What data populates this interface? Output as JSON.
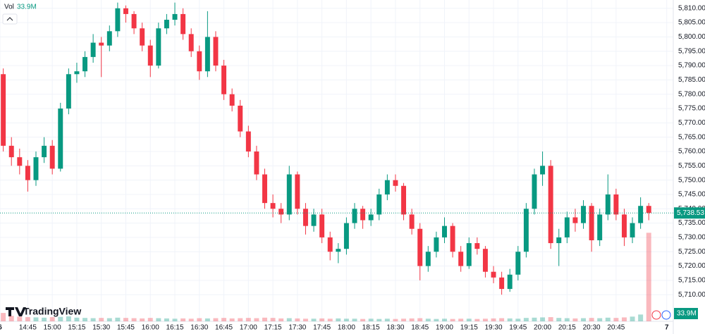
{
  "chart_data": {
    "type": "candlestick",
    "volume_header": "Vol",
    "brand": "TradingView",
    "x": [
      "14:30",
      "14:35",
      "14:40",
      "14:45",
      "14:50",
      "14:55",
      "15:00",
      "15:05",
      "15:10",
      "15:15",
      "15:20",
      "15:25",
      "15:30",
      "15:35",
      "15:40",
      "15:45",
      "15:50",
      "15:55",
      "16:00",
      "16:05",
      "16:10",
      "16:15",
      "16:20",
      "16:25",
      "16:30",
      "16:35",
      "16:40",
      "16:45",
      "16:50",
      "16:55",
      "17:00",
      "17:05",
      "17:10",
      "17:15",
      "17:20",
      "17:25",
      "17:30",
      "17:35",
      "17:40",
      "17:45",
      "17:50",
      "17:55",
      "18:00",
      "18:05",
      "18:10",
      "18:15",
      "18:20",
      "18:25",
      "18:30",
      "18:35",
      "18:40",
      "18:45",
      "18:50",
      "18:55",
      "19:00",
      "19:05",
      "19:10",
      "19:15",
      "19:20",
      "19:25",
      "19:30",
      "19:35",
      "19:40",
      "19:45",
      "19:50",
      "19:55",
      "20:00",
      "20:05",
      "20:10",
      "20:15",
      "20:20",
      "20:25",
      "20:30",
      "20:35",
      "20:40",
      "20:45",
      "20:50",
      "20:55",
      "21:00",
      "21:05"
    ],
    "open": [
      5787,
      5762,
      5758,
      5755,
      5750,
      5758,
      5762,
      5754,
      5775,
      5787,
      5788,
      5793,
      5798,
      5797,
      5802,
      5810,
      5808,
      5803,
      5797,
      5790,
      5803,
      5806,
      5808,
      5801,
      5795,
      5788,
      5800,
      5790,
      5780,
      5776,
      5767,
      5760,
      5752,
      5742,
      5740,
      5738,
      5752,
      5740,
      5734,
      5738,
      5730,
      5725,
      5726,
      5735,
      5740,
      5736,
      5738,
      5745,
      5750,
      5748,
      5738,
      5733,
      5720,
      5725,
      5730,
      5734,
      5725,
      5720,
      5728,
      5726,
      5718,
      5716,
      5712,
      5717,
      5725,
      5740,
      5752,
      5755,
      5728,
      5730,
      5737,
      5735,
      5741,
      5729,
      5738,
      5745,
      5738,
      5730,
      5735,
      5741
    ],
    "high": [
      5789,
      5765,
      5761,
      5757,
      5760,
      5765,
      5764,
      5777,
      5789,
      5791,
      5795,
      5801,
      5800,
      5804,
      5812,
      5811,
      5809,
      5805,
      5799,
      5805,
      5808,
      5812,
      5810,
      5803,
      5797,
      5809,
      5802,
      5792,
      5782,
      5778,
      5769,
      5762,
      5754,
      5745,
      5742,
      5755,
      5753,
      5742,
      5740,
      5740,
      5732,
      5728,
      5737,
      5742,
      5741,
      5740,
      5747,
      5752,
      5752,
      5749,
      5740,
      5735,
      5727,
      5732,
      5737,
      5735,
      5727,
      5730,
      5730,
      5727,
      5720,
      5718,
      5719,
      5727,
      5742,
      5754,
      5760,
      5757,
      5733,
      5739,
      5740,
      5743,
      5742,
      5740,
      5752,
      5747,
      5740,
      5737,
      5744,
      5742
    ],
    "low": [
      5760,
      5755,
      5752,
      5746,
      5748,
      5756,
      5752,
      5753,
      5773,
      5784,
      5786,
      5791,
      5786,
      5795,
      5800,
      5805,
      5801,
      5795,
      5786,
      5789,
      5801,
      5804,
      5799,
      5793,
      5785,
      5786,
      5788,
      5778,
      5774,
      5765,
      5758,
      5750,
      5740,
      5737,
      5735,
      5736,
      5738,
      5731,
      5732,
      5728,
      5722,
      5721,
      5724,
      5733,
      5733,
      5734,
      5736,
      5743,
      5746,
      5736,
      5731,
      5715,
      5718,
      5723,
      5728,
      5723,
      5718,
      5719,
      5724,
      5716,
      5714,
      5710,
      5711,
      5715,
      5723,
      5738,
      5748,
      5726,
      5720,
      5728,
      5732,
      5733,
      5725,
      5727,
      5736,
      5736,
      5727,
      5728,
      5733,
      5736
    ],
    "close": [
      5762,
      5758,
      5755,
      5750,
      5758,
      5762,
      5754,
      5775,
      5787,
      5788,
      5793,
      5798,
      5797,
      5802,
      5810,
      5808,
      5803,
      5797,
      5790,
      5803,
      5806,
      5808,
      5801,
      5795,
      5788,
      5800,
      5790,
      5780,
      5776,
      5767,
      5760,
      5752,
      5742,
      5740,
      5738,
      5752,
      5740,
      5734,
      5738,
      5730,
      5725,
      5726,
      5735,
      5740,
      5736,
      5738,
      5745,
      5750,
      5748,
      5738,
      5733,
      5720,
      5725,
      5730,
      5734,
      5725,
      5720,
      5728,
      5726,
      5718,
      5716,
      5712,
      5717,
      5725,
      5740,
      5752,
      5755,
      5728,
      5730,
      5737,
      5735,
      5741,
      5729,
      5738,
      5745,
      5738,
      5730,
      5735,
      5741,
      5738.53
    ],
    "volume": [
      3.2,
      2.1,
      1.8,
      1.6,
      1.5,
      1.4,
      1.6,
      1.7,
      1.9,
      1.4,
      1.3,
      1.2,
      1.3,
      1.2,
      1.4,
      1.3,
      1.2,
      1.1,
      1.3,
      1.2,
      1.1,
      1.0,
      1.1,
      1.0,
      1.2,
      1.1,
      1.2,
      1.3,
      1.1,
      1.2,
      1.3,
      1.2,
      1.4,
      1.3,
      1.1,
      1.2,
      1.1,
      1.0,
      1.0,
      1.1,
      1.0,
      1.1,
      1.0,
      1.0,
      0.9,
      1.0,
      0.9,
      1.0,
      0.9,
      1.0,
      1.1,
      1.2,
      1.0,
      0.9,
      1.0,
      0.9,
      1.0,
      1.0,
      0.9,
      1.0,
      1.1,
      1.2,
      1.1,
      1.0,
      1.3,
      1.4,
      1.5,
      1.6,
      1.3,
      1.2,
      1.1,
      1.2,
      1.3,
      1.2,
      1.4,
      1.3,
      1.5,
      1.8,
      2.6,
      33.9
    ],
    "volume_value_labels": {
      "79": "33.9M"
    },
    "volume_ylim": [
      0,
      123
    ],
    "up_color": "#089981",
    "down_color": "#f23645",
    "xlim": [
      "14:28",
      "21:20"
    ],
    "xticks": [
      {
        "value": "14:28",
        "label": "6"
      },
      "14:45",
      "15:00",
      "15:15",
      "15:30",
      "15:45",
      "16:00",
      "16:15",
      "16:30",
      "16:45",
      "17:00",
      "17:15",
      "17:30",
      "17:45",
      "18:00",
      "18:15",
      "18:30",
      "18:45",
      "19:00",
      "19:15",
      "19:30",
      "19:45",
      "20:00",
      "20:15",
      "20:30",
      "20:45",
      {
        "value": "21:16",
        "label": "7"
      }
    ],
    "ylim": [
      5700.7,
      5812.9
    ],
    "yticks": [
      {
        "value": 5710,
        "label": "5,710.00"
      },
      {
        "value": 5715,
        "label": "5,715.00"
      },
      {
        "value": 5720,
        "label": "5,720.00"
      },
      {
        "value": 5725,
        "label": "5,725.00"
      },
      {
        "value": 5730,
        "label": "5,730.00"
      },
      {
        "value": 5735,
        "label": "5,735.00"
      },
      {
        "value": 5740,
        "label": "5,740.00"
      },
      {
        "value": 5745,
        "label": "5,745.00"
      },
      {
        "value": 5750,
        "label": "5,750.00"
      },
      {
        "value": 5755,
        "label": "5,755.00"
      },
      {
        "value": 5760,
        "label": "5,760.00"
      },
      {
        "value": 5765,
        "label": "5,765.00"
      },
      {
        "value": 5770,
        "label": "5,770.00"
      },
      {
        "value": 5775,
        "label": "5,775.00"
      },
      {
        "value": 5780,
        "label": "5,780.00"
      },
      {
        "value": 5785,
        "label": "5,785.00"
      },
      {
        "value": 5790,
        "label": "5,790.00"
      },
      {
        "value": 5795,
        "label": "5,795.00"
      },
      {
        "value": 5800,
        "label": "5,800.00"
      },
      {
        "value": 5805,
        "label": "5,805.00"
      },
      {
        "value": 5810,
        "label": "5,810.00"
      }
    ],
    "last_price": {
      "value": 5738.53,
      "label": "5,738.53"
    },
    "grid": true
  }
}
